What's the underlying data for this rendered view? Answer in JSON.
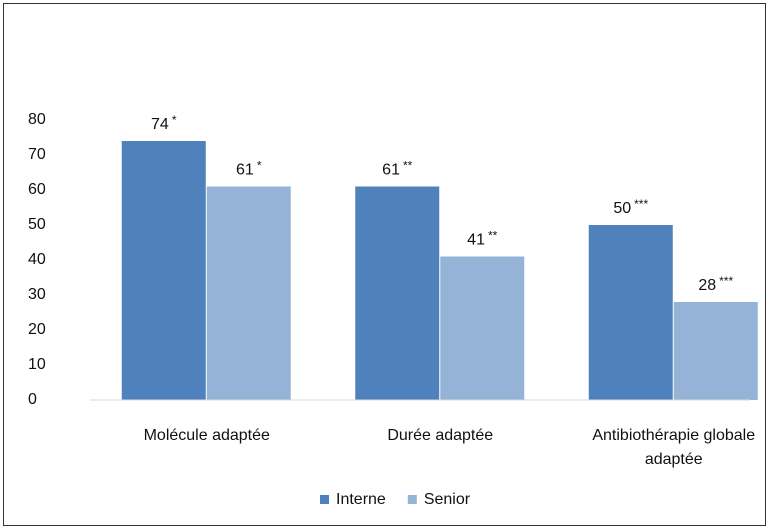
{
  "chart_data": {
    "type": "bar",
    "categories": [
      "Molécule adaptée",
      "Durée adaptée",
      "Antibiothérapie globale adaptée"
    ],
    "significance": [
      "*",
      "**",
      "***"
    ],
    "series": [
      {
        "name": "Interne",
        "color": "#4f81bd",
        "values": [
          74,
          61,
          50
        ]
      },
      {
        "name": "Senior",
        "color": "#95b3d7",
        "values": [
          61,
          41,
          28
        ]
      }
    ],
    "ylim": [
      0,
      80
    ],
    "yticks": [
      0,
      10,
      20,
      30,
      40,
      50,
      60,
      70,
      80
    ],
    "grid": false,
    "legend": "bottom"
  }
}
